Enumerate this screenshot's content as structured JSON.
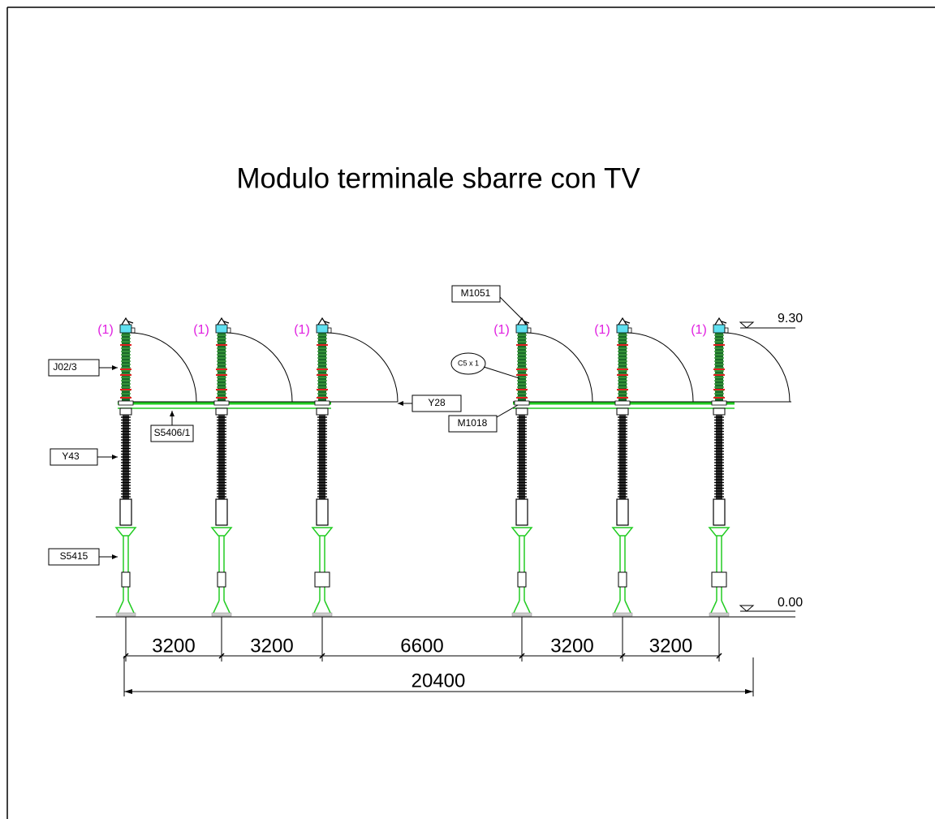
{
  "title": "Modulo terminale sbarre con TV",
  "levels": {
    "top": "9.30",
    "ground": "0.00"
  },
  "column_marks": [
    "(1)",
    "(1)",
    "(1)",
    "(1)",
    "(1)",
    "(1)"
  ],
  "labels": {
    "m1051": "M1051",
    "c5": "C5 x 1",
    "j02": "J02/3",
    "y28": "Y28",
    "m1018": "M1018",
    "s5406": "S5406/1",
    "y43": "Y43",
    "s5415": "S5415"
  },
  "dimensions": {
    "segments": [
      "3200",
      "3200",
      "6600",
      "3200",
      "3200"
    ],
    "total": "20400"
  }
}
